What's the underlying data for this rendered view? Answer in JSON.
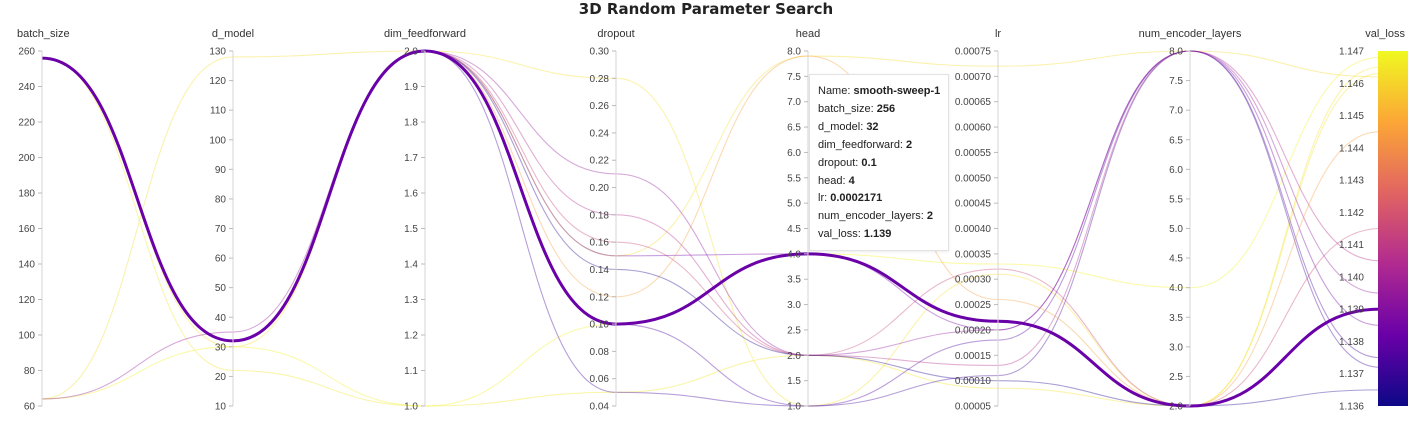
{
  "chart_data": {
    "type": "parallel_coordinates",
    "title": "3D Random Parameter Search",
    "axes": [
      {
        "name": "batch_size",
        "range": [
          60,
          260
        ],
        "ticks": [
          "60",
          "80",
          "100",
          "120",
          "140",
          "160",
          "180",
          "200",
          "220",
          "240",
          "260"
        ],
        "tick_values": [
          60,
          80,
          100,
          120,
          140,
          160,
          180,
          200,
          220,
          240,
          260
        ]
      },
      {
        "name": "d_model",
        "range": [
          10,
          130
        ],
        "ticks": [
          "10",
          "20",
          "30",
          "40",
          "50",
          "60",
          "70",
          "80",
          "90",
          "100",
          "110",
          "120",
          "130"
        ],
        "tick_values": [
          10,
          20,
          30,
          40,
          50,
          60,
          70,
          80,
          90,
          100,
          110,
          120,
          130
        ]
      },
      {
        "name": "dim_feedforward",
        "range": [
          1.0,
          2.0
        ],
        "ticks": [
          "1.0",
          "1.1",
          "1.2",
          "1.3",
          "1.4",
          "1.5",
          "1.6",
          "1.7",
          "1.8",
          "1.9",
          "2.0"
        ],
        "tick_values": [
          1.0,
          1.1,
          1.2,
          1.3,
          1.4,
          1.5,
          1.6,
          1.7,
          1.8,
          1.9,
          2.0
        ]
      },
      {
        "name": "dropout",
        "range": [
          0.04,
          0.3
        ],
        "ticks": [
          "0.04",
          "0.06",
          "0.08",
          "0.10",
          "0.12",
          "0.14",
          "0.16",
          "0.18",
          "0.20",
          "0.22",
          "0.24",
          "0.26",
          "0.28",
          "0.30"
        ],
        "tick_values": [
          0.04,
          0.06,
          0.08,
          0.1,
          0.12,
          0.14,
          0.16,
          0.18,
          0.2,
          0.22,
          0.24,
          0.26,
          0.28,
          0.3
        ]
      },
      {
        "name": "head",
        "range": [
          1.0,
          8.0
        ],
        "ticks": [
          "1.0",
          "1.5",
          "2.0",
          "2.5",
          "3.0",
          "3.5",
          "4.0",
          "4.5",
          "5.0",
          "5.5",
          "6.0",
          "6.5",
          "7.0",
          "7.5",
          "8.0"
        ],
        "tick_values": [
          1.0,
          1.5,
          2.0,
          2.5,
          3.0,
          3.5,
          4.0,
          4.5,
          5.0,
          5.5,
          6.0,
          6.5,
          7.0,
          7.5,
          8.0
        ]
      },
      {
        "name": "lr",
        "range": [
          5e-05,
          0.00075
        ],
        "ticks": [
          "0.00005",
          "0.00010",
          "0.00015",
          "0.00020",
          "0.00025",
          "0.00030",
          "0.00035",
          "0.00040",
          "0.00045",
          "0.00050",
          "0.00055",
          "0.00060",
          "0.00065",
          "0.00070",
          "0.00075"
        ],
        "tick_values": [
          5e-05,
          0.0001,
          0.00015,
          0.0002,
          0.00025,
          0.0003,
          0.00035,
          0.0004,
          0.00045,
          0.0005,
          0.00055,
          0.0006,
          0.00065,
          0.0007,
          0.00075
        ]
      },
      {
        "name": "num_encoder_layers",
        "range": [
          2.0,
          8.0
        ],
        "ticks": [
          "2.0",
          "2.5",
          "3.0",
          "3.5",
          "4.0",
          "4.5",
          "5.0",
          "5.5",
          "6.0",
          "6.5",
          "7.0",
          "7.5",
          "8.0"
        ],
        "tick_values": [
          2.0,
          2.5,
          3.0,
          3.5,
          4.0,
          4.5,
          5.0,
          5.5,
          6.0,
          6.5,
          7.0,
          7.5,
          8.0
        ]
      },
      {
        "name": "val_loss",
        "range": [
          1.136,
          1.147
        ],
        "ticks": [
          "1.136",
          "1.137",
          "1.138",
          "1.139",
          "1.140",
          "1.141",
          "1.142",
          "1.143",
          "1.144",
          "1.145",
          "1.146",
          "1.147"
        ],
        "tick_values": [
          1.136,
          1.137,
          1.138,
          1.139,
          1.14,
          1.141,
          1.142,
          1.143,
          1.144,
          1.145,
          1.146,
          1.147
        ]
      }
    ],
    "colorscale": [
      "#0d0887",
      "#6a00a8",
      "#b12a90",
      "#e16462",
      "#fca636",
      "#f0f921"
    ],
    "colorbar_range": [
      1.136,
      1.147
    ],
    "runs": [
      {
        "name": "smooth-sweep-1",
        "highlighted": true,
        "values": [
          256,
          32,
          2,
          0.1,
          4,
          0.0002171,
          2,
          1.139
        ]
      },
      {
        "values": [
          256,
          22,
          1,
          0.05,
          2,
          8.5e-05,
          2,
          1.1465
        ]
      },
      {
        "values": [
          256,
          30,
          2,
          0.28,
          1,
          0.00031,
          2,
          1.1463
        ]
      },
      {
        "values": [
          64,
          128,
          2,
          0.15,
          7.9,
          0.00072,
          8,
          1.1462
        ]
      },
      {
        "values": [
          64,
          30,
          1,
          0.1,
          4,
          0.00033,
          4,
          1.1468
        ]
      },
      {
        "values": [
          64,
          35,
          2,
          0.21,
          2,
          0.0002,
          8,
          1.1395
        ]
      },
      {
        "values": [
          256,
          32,
          2,
          0.05,
          1,
          0.00011,
          8,
          1.1372
        ]
      },
      {
        "values": [
          256,
          32,
          2,
          0.16,
          2,
          0.00032,
          2,
          1.1415
        ]
      },
      {
        "values": [
          256,
          32,
          2,
          0.1,
          1,
          0.00018,
          8,
          1.1375
        ]
      },
      {
        "values": [
          256,
          32,
          2,
          0.15,
          4,
          0.0002,
          8,
          1.1385
        ]
      },
      {
        "values": [
          256,
          32,
          2,
          0.18,
          2,
          0.00013,
          8,
          1.1405
        ]
      },
      {
        "values": [
          256,
          32,
          2,
          0.12,
          7.9,
          0.00026,
          2,
          1.1445
        ]
      },
      {
        "values": [
          256,
          32,
          2,
          0.14,
          2,
          0.0001,
          2,
          1.1365
        ]
      }
    ]
  },
  "tooltip": {
    "lines": [
      {
        "label": "Name: ",
        "value": "smooth-sweep-1"
      },
      {
        "label": "batch_size: ",
        "value": "256"
      },
      {
        "label": "d_model: ",
        "value": "32"
      },
      {
        "label": "dim_feedforward: ",
        "value": "2"
      },
      {
        "label": "dropout: ",
        "value": "0.1"
      },
      {
        "label": "head: ",
        "value": "4"
      },
      {
        "label": "lr: ",
        "value": "0.0002171"
      },
      {
        "label": "num_encoder_layers: ",
        "value": "2"
      },
      {
        "label": "val_loss: ",
        "value": "1.139"
      }
    ]
  }
}
